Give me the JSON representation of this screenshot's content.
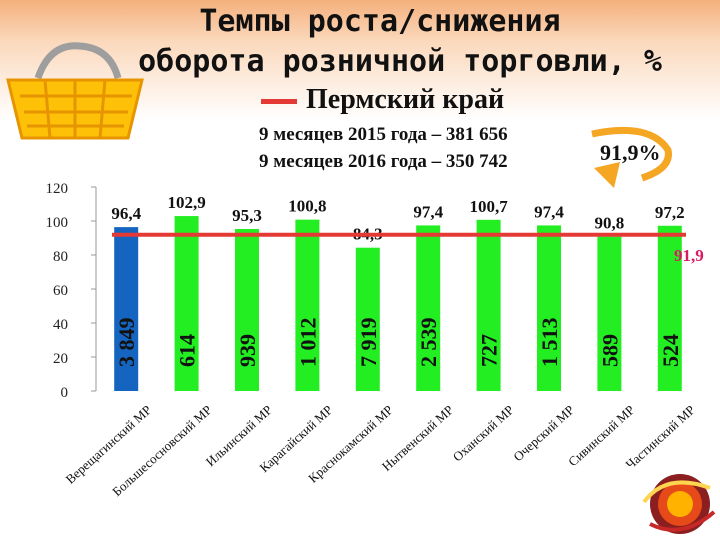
{
  "header": {
    "title_line1": "Темпы роста/снижения",
    "title_line2": "оборота розничной торговли, %",
    "region_label": "Пермский край",
    "period1": "9 месяцев 2015 года – 381 656",
    "period2": "9 месяцев 2016 года – 350 742",
    "growth_label": "91,9%"
  },
  "colors": {
    "first_bar": "#1565c0",
    "bars": "#22ee22",
    "reference_line": "#e53935",
    "reference_label": "#d81b60"
  },
  "chart_data": {
    "type": "bar",
    "categories": [
      "Верещагинский МР",
      "Большесосновский МР",
      "Ильинский МР",
      "Карагайский МР",
      "Краснокамский МР",
      "Нытвенский МР",
      "Оханский МР",
      "Очерский МР",
      "Сивинский МР",
      "Частинский МР"
    ],
    "values": [
      96.4,
      102.9,
      95.3,
      100.8,
      84.3,
      97.4,
      100.7,
      97.4,
      90.8,
      97.2
    ],
    "value_labels": [
      "96,4",
      "102,9",
      "95,3",
      "100,8",
      "84,3",
      "97,4",
      "100,7",
      "97,4",
      "90,8",
      "97,2"
    ],
    "bar_labels": [
      "3 849",
      "614",
      "939",
      "1 012",
      "7 919",
      "2 539",
      "727",
      "1 513",
      "589",
      "524"
    ],
    "reference_value": 91.9,
    "reference_label": "91,9",
    "yticks": [
      0,
      20,
      40,
      60,
      80,
      100,
      120
    ],
    "ylim": [
      0,
      120
    ]
  }
}
